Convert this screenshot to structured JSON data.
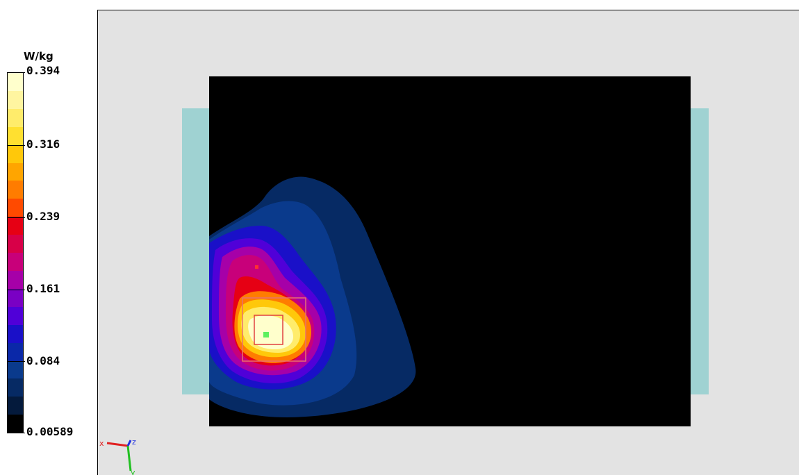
{
  "legend": {
    "unit": "W/kg",
    "labels": [
      "0.394",
      "0.316",
      "0.239",
      "0.161",
      "0.084",
      "0.00589"
    ],
    "colors": [
      "#ffffcc",
      "#fff5a0",
      "#ffec6b",
      "#ffe030",
      "#ffc80a",
      "#ffa500",
      "#ff7c00",
      "#ff4a00",
      "#e60014",
      "#d80048",
      "#c8007a",
      "#a600a8",
      "#7a00c4",
      "#5000d8",
      "#1a10c8",
      "#0a28a8",
      "#0a3a8c",
      "#062a64",
      "#041a3c",
      "#000000"
    ]
  },
  "axes": {
    "x_label": "x",
    "y_label": "y",
    "z_label": "z",
    "x_color": "#e02020",
    "y_color": "#20c020",
    "z_color": "#2030e0"
  },
  "scene": {
    "background": "#e3e3e3",
    "phantom_color": "#9fd2d2",
    "area_color": "#000000",
    "peak_marker_color": "#5ef05e",
    "zoom_box_color": "#e85050"
  }
}
